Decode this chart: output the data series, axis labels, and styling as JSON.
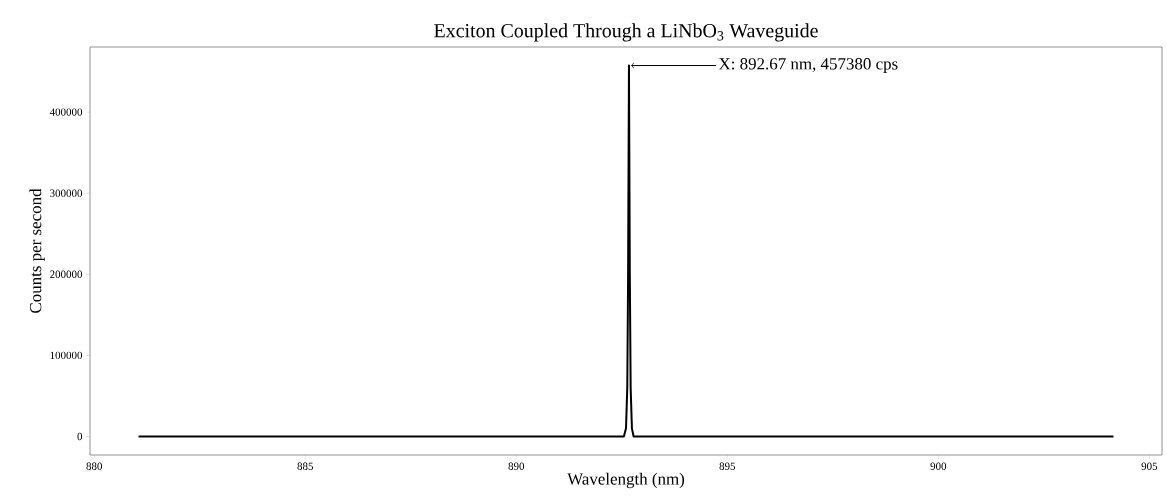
{
  "chart_data": {
    "type": "line",
    "title": "Exciton Coupled Through a LiNbO$_{3}$ Waveguide",
    "xlabel": "Wavelength (nm)",
    "ylabel": "Counts per second",
    "x": [
      881.05,
      890.0,
      892.55,
      892.6,
      892.63,
      892.65,
      892.67,
      892.69,
      892.71,
      892.74,
      892.78,
      895.0,
      904.15
    ],
    "values": [
      0,
      0,
      0,
      10000,
      60000,
      200000,
      457380,
      200000,
      60000,
      10000,
      0,
      0,
      0
    ],
    "color": "#000000",
    "line_style": "solid",
    "marker": "none",
    "grid": false,
    "xlim": [
      879.9,
      905.3
    ],
    "ylim": [
      -22869,
      480249
    ],
    "xticks": [
      880,
      885,
      890,
      895,
      900,
      905
    ],
    "yticks": [
      0,
      100000,
      200000,
      300000,
      400000
    ],
    "annotations": [
      "X: 892.67 nm, 457380 cps"
    ]
  }
}
